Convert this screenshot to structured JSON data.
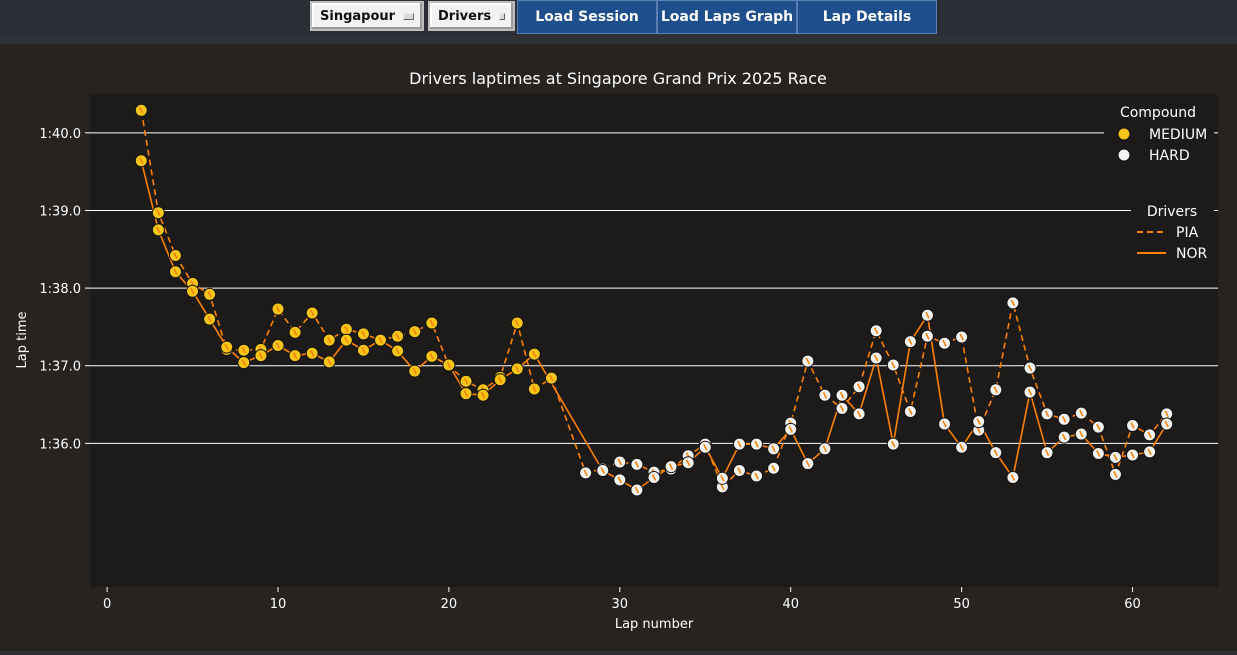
{
  "toolbar": {
    "event_select": "Singapour",
    "drivers_select": "Drivers",
    "load_session": "Load Session",
    "load_laps_graph": "Load Laps Graph",
    "lap_details": "Lap Details"
  },
  "colors": {
    "medium": "#f5c518",
    "hard": "#f2f2f2",
    "line": "#ff8000",
    "plot_bg": "#1c1b1a",
    "grid": "#ffffff"
  },
  "chart_data": {
    "type": "line",
    "title": "Drivers laptimes at Singapore Grand Prix 2025 Race",
    "xlabel": "Lap number",
    "ylabel": "Lap time",
    "xlim": [
      -1,
      65
    ],
    "ylim": [
      94.15,
      100.5
    ],
    "x_ticks": [
      0,
      10,
      20,
      30,
      40,
      50,
      60
    ],
    "y_ticks": [
      {
        "value": 96,
        "label": "1:36.0"
      },
      {
        "value": 97,
        "label": "1:37.0"
      },
      {
        "value": 98,
        "label": "1:38.0"
      },
      {
        "value": 99,
        "label": "1:39.0"
      },
      {
        "value": 100,
        "label": "1:40.0"
      }
    ],
    "grid": "horizontal",
    "legend_compound": {
      "title": "Compound",
      "items": [
        {
          "label": "MEDIUM",
          "compound": "MEDIUM"
        },
        {
          "label": "HARD",
          "compound": "HARD"
        }
      ],
      "placement": "top-right"
    },
    "legend_drivers": {
      "title": "Drivers",
      "items": [
        {
          "label": "PIA",
          "dash": "dashed"
        },
        {
          "label": "NOR",
          "dash": "solid"
        }
      ],
      "placement": "upper-right"
    },
    "series": [
      {
        "name": "PIA",
        "dash": "dashed",
        "x": [
          2,
          3,
          4,
          5,
          6,
          7,
          8,
          9,
          10,
          11,
          12,
          13,
          14,
          15,
          16,
          17,
          18,
          19,
          20,
          21,
          22,
          23,
          24,
          25,
          26,
          28,
          29,
          30,
          31,
          32,
          33,
          34,
          35,
          36,
          37,
          38,
          39,
          40,
          41,
          42,
          43,
          44,
          45,
          46,
          47,
          48,
          49,
          50,
          51,
          52,
          53,
          54,
          55,
          56,
          57,
          58,
          59,
          60,
          61,
          62
        ],
        "y": [
          100.29,
          98.97,
          98.42,
          98.06,
          97.92,
          97.21,
          97.2,
          97.21,
          97.73,
          97.43,
          97.68,
          97.33,
          97.47,
          97.41,
          97.33,
          97.38,
          97.44,
          97.55,
          97.0,
          96.8,
          96.69,
          96.85,
          97.55,
          96.7,
          96.84,
          95.62,
          95.67,
          95.76,
          95.73,
          95.63,
          95.67,
          95.84,
          95.99,
          95.44,
          95.65,
          95.58,
          95.68,
          96.26,
          97.06,
          96.62,
          96.45,
          96.73,
          97.45,
          97.01,
          96.41,
          97.38,
          97.29,
          97.37,
          96.17,
          96.69,
          97.81,
          96.97,
          96.38,
          96.31,
          96.39,
          96.21,
          95.6,
          96.23,
          96.11,
          96.38
        ],
        "compound": [
          "MEDIUM",
          "MEDIUM",
          "MEDIUM",
          "MEDIUM",
          "MEDIUM",
          "MEDIUM",
          "MEDIUM",
          "MEDIUM",
          "MEDIUM",
          "MEDIUM",
          "MEDIUM",
          "MEDIUM",
          "MEDIUM",
          "MEDIUM",
          "MEDIUM",
          "MEDIUM",
          "MEDIUM",
          "MEDIUM",
          "MEDIUM",
          "MEDIUM",
          "MEDIUM",
          "MEDIUM",
          "MEDIUM",
          "MEDIUM",
          "MEDIUM",
          "HARD",
          "HARD",
          "HARD",
          "HARD",
          "HARD",
          "HARD",
          "HARD",
          "HARD",
          "HARD",
          "HARD",
          "HARD",
          "HARD",
          "HARD",
          "HARD",
          "HARD",
          "HARD",
          "HARD",
          "HARD",
          "HARD",
          "HARD",
          "HARD",
          "HARD",
          "HARD",
          "HARD",
          "HARD",
          "HARD",
          "HARD",
          "HARD",
          "HARD",
          "HARD",
          "HARD",
          "HARD",
          "HARD",
          "HARD",
          "HARD"
        ]
      },
      {
        "name": "NOR",
        "dash": "solid",
        "x": [
          2,
          3,
          4,
          5,
          6,
          7,
          8,
          9,
          10,
          11,
          12,
          13,
          14,
          15,
          16,
          17,
          18,
          19,
          20,
          21,
          22,
          23,
          24,
          25,
          29,
          30,
          31,
          32,
          33,
          34,
          35,
          36,
          37,
          38,
          39,
          40,
          41,
          42,
          43,
          44,
          45,
          46,
          47,
          48,
          49,
          50,
          51,
          52,
          53,
          54,
          55,
          56,
          57,
          58,
          59,
          60,
          61,
          62
        ],
        "y": [
          99.64,
          98.75,
          98.21,
          97.96,
          97.6,
          97.24,
          97.04,
          97.13,
          97.26,
          97.13,
          97.16,
          97.05,
          97.33,
          97.2,
          97.33,
          97.19,
          96.93,
          97.12,
          97.01,
          96.64,
          96.62,
          96.82,
          96.96,
          97.15,
          95.65,
          95.53,
          95.4,
          95.56,
          95.7,
          95.75,
          95.95,
          95.55,
          95.99,
          95.99,
          95.93,
          96.18,
          95.74,
          95.93,
          96.62,
          96.38,
          97.1,
          95.99,
          97.31,
          97.65,
          96.25,
          95.95,
          96.28,
          95.88,
          95.56,
          96.66,
          95.88,
          96.08,
          96.12,
          95.87,
          95.82,
          95.85,
          95.89,
          96.25
        ],
        "compound": [
          "MEDIUM",
          "MEDIUM",
          "MEDIUM",
          "MEDIUM",
          "MEDIUM",
          "MEDIUM",
          "MEDIUM",
          "MEDIUM",
          "MEDIUM",
          "MEDIUM",
          "MEDIUM",
          "MEDIUM",
          "MEDIUM",
          "MEDIUM",
          "MEDIUM",
          "MEDIUM",
          "MEDIUM",
          "MEDIUM",
          "MEDIUM",
          "MEDIUM",
          "MEDIUM",
          "MEDIUM",
          "MEDIUM",
          "MEDIUM",
          "HARD",
          "HARD",
          "HARD",
          "HARD",
          "HARD",
          "HARD",
          "HARD",
          "HARD",
          "HARD",
          "HARD",
          "HARD",
          "HARD",
          "HARD",
          "HARD",
          "HARD",
          "HARD",
          "HARD",
          "HARD",
          "HARD",
          "HARD",
          "HARD",
          "HARD",
          "HARD",
          "HARD",
          "HARD",
          "HARD",
          "HARD",
          "HARD",
          "HARD",
          "HARD",
          "HARD",
          "HARD",
          "HARD",
          "HARD"
        ]
      }
    ]
  }
}
